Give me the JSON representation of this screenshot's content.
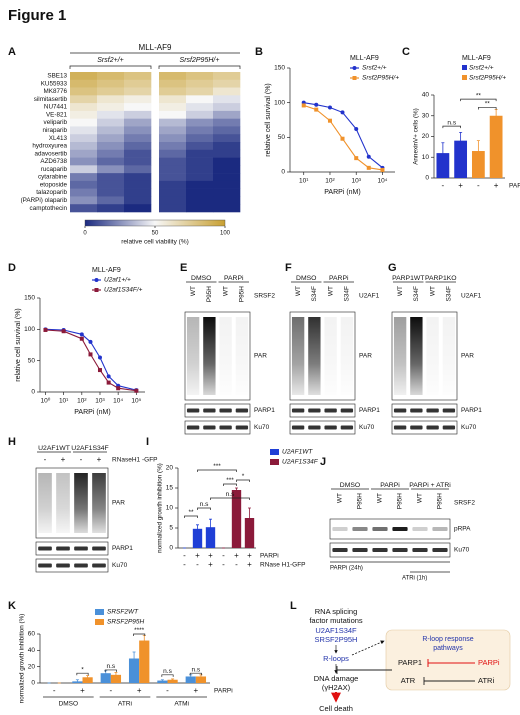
{
  "figure_title": "Figure 1",
  "panel_labels": [
    "A",
    "B",
    "C",
    "D",
    "E",
    "F",
    "G",
    "H",
    "I",
    "J",
    "K",
    "L"
  ],
  "chart_data": [
    {
      "type": "heatmap",
      "title": "MLL-AF9",
      "groups": [
        "Srsf2+/+",
        "Srsf2P95H/+"
      ],
      "rows": [
        "SBE13",
        "KU55933",
        "MK8776",
        "silmitasertib",
        "NU7441",
        "VE-821",
        "veliparib",
        "niraparib",
        "XL413",
        "hydroxyurea",
        "adavosertib",
        "AZD6738",
        "rucaparib",
        "cytarabine",
        "etoposide",
        "talazoparib",
        "(PARPi) olaparib",
        "camptothecin"
      ],
      "values": [
        [
          90,
          85,
          80,
          85,
          80,
          75
        ],
        [
          85,
          80,
          75,
          80,
          75,
          70
        ],
        [
          80,
          75,
          70,
          75,
          70,
          60
        ],
        [
          70,
          60,
          55,
          60,
          50,
          45
        ],
        [
          60,
          55,
          50,
          55,
          45,
          40
        ],
        [
          55,
          45,
          40,
          50,
          40,
          30
        ],
        [
          50,
          40,
          30,
          35,
          25,
          20
        ],
        [
          45,
          35,
          25,
          30,
          20,
          15
        ],
        [
          40,
          30,
          20,
          25,
          15,
          10
        ],
        [
          35,
          25,
          15,
          20,
          10,
          5
        ],
        [
          30,
          20,
          10,
          15,
          5,
          5
        ],
        [
          25,
          15,
          10,
          10,
          5,
          0
        ],
        [
          40,
          25,
          15,
          10,
          5,
          0
        ],
        [
          20,
          10,
          5,
          10,
          5,
          0
        ],
        [
          15,
          10,
          5,
          5,
          0,
          0
        ],
        [
          20,
          10,
          5,
          5,
          0,
          0
        ],
        [
          25,
          15,
          5,
          5,
          0,
          0
        ],
        [
          10,
          5,
          0,
          5,
          0,
          0
        ]
      ],
      "colorbar_label": "relative cell viability (%)",
      "clim": [
        0,
        100
      ],
      "cticks": [
        0,
        50,
        100
      ],
      "colors": [
        "#1b2a80",
        "#f7f7f7",
        "#c8a032"
      ]
    },
    {
      "type": "line",
      "legend_title": "MLL-AF9",
      "x": [
        10,
        30,
        100,
        300,
        1000,
        3000,
        10000
      ],
      "series": [
        {
          "name": "Srsf2+/+",
          "color": "#2233cc",
          "values": [
            100,
            97,
            93,
            86,
            62,
            22,
            6
          ]
        },
        {
          "name": "Srsf2P95H/+",
          "color": "#f0922b",
          "values": [
            96,
            90,
            74,
            48,
            20,
            6,
            3
          ]
        }
      ],
      "xlabel": "PARPi (nM)",
      "ylabel": "relative cell survival (%)",
      "log_x": true,
      "xlim": [
        3,
        30000
      ],
      "xticks": [
        {
          "value": 10,
          "label": "10¹"
        },
        {
          "value": 100,
          "label": "10²"
        },
        {
          "value": 1000,
          "label": "10³"
        },
        {
          "value": 10000,
          "label": "10⁴"
        }
      ],
      "ylim": [
        0,
        150
      ],
      "yticks": [
        0,
        50,
        100,
        150
      ]
    },
    {
      "type": "bar",
      "legend_title": "MLL-AF9",
      "categories": [
        "-",
        "+",
        "-",
        "+"
      ],
      "category_label": "PARPi",
      "series": [
        {
          "name": "Srsf2+/+",
          "color": "#2233cc",
          "values": [
            12,
            18,
            null,
            null
          ],
          "errors": [
            5,
            4,
            null,
            null
          ]
        },
        {
          "name": "Srsf2P95H/+",
          "color": "#f0922b",
          "values": [
            null,
            null,
            13,
            30
          ],
          "errors": [
            null,
            null,
            5,
            3
          ]
        }
      ],
      "ylabel": "AnnexinV+ cells (%)",
      "ylim": [
        0,
        40
      ],
      "yticks": [
        0,
        10,
        20,
        30,
        40
      ],
      "annotations": [
        "n.s",
        "**",
        "**"
      ]
    },
    {
      "type": "line",
      "legend_title": "MLL-AF9",
      "x": [
        1,
        10,
        100,
        300,
        1000,
        3000,
        10000,
        100000
      ],
      "series": [
        {
          "name": "U2af1+/+",
          "color": "#2233cc",
          "values": [
            100,
            99,
            92,
            80,
            55,
            25,
            10,
            3
          ]
        },
        {
          "name": "U2af1S34F/+",
          "color": "#8b1a3a",
          "values": [
            99,
            97,
            85,
            60,
            35,
            15,
            6,
            2
          ]
        }
      ],
      "xlabel": "PARPi (nM)",
      "ylabel": "relative cell survival (%)",
      "log_x": true,
      "xlim": [
        0.5,
        300000
      ],
      "xticks": [
        {
          "value": 1,
          "label": "10⁰"
        },
        {
          "value": 10,
          "label": "10¹"
        },
        {
          "value": 100,
          "label": "10²"
        },
        {
          "value": 1000,
          "label": "10³"
        },
        {
          "value": 10000,
          "label": "10⁴"
        },
        {
          "value": 100000,
          "label": "10⁵"
        }
      ],
      "ylim": [
        0,
        150
      ],
      "yticks": [
        0,
        50,
        100,
        150
      ]
    },
    {
      "type": "bar",
      "categories": [
        "-",
        "+",
        "+",
        "-",
        "+",
        "+"
      ],
      "category_label": "PARPi",
      "categories2": [
        "-",
        "-",
        "+",
        "-",
        "-",
        "+"
      ],
      "categories2_label": "RNase H1-GFP",
      "series": [
        {
          "name": "U2AF1WT",
          "color": "#1f3fd6",
          "values": [
            0,
            4.8,
            5.2,
            null,
            null,
            null
          ],
          "errors": [
            0,
            1,
            2,
            null,
            null,
            null
          ]
        },
        {
          "name": "U2AF1S34F",
          "color": "#8b1a3a",
          "values": [
            null,
            null,
            null,
            0,
            14.5,
            7.5
          ],
          "errors": [
            null,
            null,
            null,
            0,
            0.5,
            2.5
          ]
        }
      ],
      "ylabel": "normalized growth inhibition (%)",
      "ylim": [
        0,
        20
      ],
      "yticks": [
        0,
        5,
        10,
        15,
        20
      ],
      "annotations": [
        "**",
        "n.s",
        "***",
        "*",
        "n.s",
        "***"
      ]
    },
    {
      "type": "bar",
      "categories": [
        "-",
        "+",
        "-",
        "+",
        "-",
        "+"
      ],
      "category_label": "PARPi",
      "groups": [
        "DMSO",
        "ATRi",
        "ATMi"
      ],
      "series": [
        {
          "name": "SRSF2WT",
          "color": "#4a90d9",
          "values": [
            0,
            2,
            12,
            30,
            3,
            8
          ],
          "errors": [
            0,
            2,
            3,
            8,
            1,
            2
          ]
        },
        {
          "name": "SRSF2P95H",
          "color": "#f0922b",
          "values": [
            0,
            7,
            10,
            52,
            4,
            8
          ],
          "errors": [
            0,
            2,
            3,
            6,
            1,
            2
          ]
        }
      ],
      "ylabel": "normalized growth inhibition (%)",
      "ylim": [
        0,
        60
      ],
      "yticks": [
        0,
        20,
        40,
        60
      ],
      "annotations": [
        "*",
        "n.s",
        "****",
        "n.s",
        "n.s"
      ]
    }
  ],
  "blots": {
    "E": {
      "top": [
        "DMSO",
        "PARPi"
      ],
      "lanes": [
        "WT",
        "P95H",
        "WT",
        "P95H"
      ],
      "gene": "SRSF2",
      "bands": [
        "PAR",
        "PARP1",
        "Ku70"
      ]
    },
    "F": {
      "top": [
        "DMSO",
        "PARPi"
      ],
      "lanes": [
        "WT",
        "S34F",
        "WT",
        "S34F"
      ],
      "gene": "U2AF1",
      "bands": [
        "PAR",
        "PARP1",
        "Ku70"
      ]
    },
    "G": {
      "top": [
        "PARP1WT",
        "PARP1KO"
      ],
      "lanes": [
        "WT",
        "S34F",
        "WT",
        "S34F"
      ],
      "gene": "U2AF1",
      "bands": [
        "PAR",
        "PARP1",
        "Ku70"
      ]
    },
    "H": {
      "top": [
        "U2AF1WT",
        "U2AF1S34F"
      ],
      "lanes": [
        "-",
        "+",
        "-",
        "+"
      ],
      "gene": "RNaseH1 -GFP",
      "bands": [
        "PAR",
        "PARP1",
        "Ku70"
      ]
    },
    "J": {
      "top": [
        "DMSO",
        "PARPi",
        "PARPi + ATRi"
      ],
      "lanes": [
        "WT",
        "P95H",
        "WT",
        "P95H",
        "WT",
        "P95H"
      ],
      "gene": "SRSF2",
      "bands": [
        "pRPA",
        "Ku70"
      ],
      "footer": [
        "PARPi (24h)",
        "ATRi (1h)"
      ]
    }
  },
  "diagram": {
    "title_lines": [
      "RNA splicing",
      "factor mutations"
    ],
    "mutations": [
      "U2AF1S34F",
      "SRSF2P95H"
    ],
    "rloops": "R-loops",
    "pathway_lines": [
      "R-loop response",
      "pathways"
    ],
    "parp1": "PARP1",
    "parpi": "PARPi",
    "atr": "ATR",
    "atri": "ATRi",
    "damage": "DNA damage",
    "marker": "(γH2AX)",
    "outcome": "Cell death"
  }
}
